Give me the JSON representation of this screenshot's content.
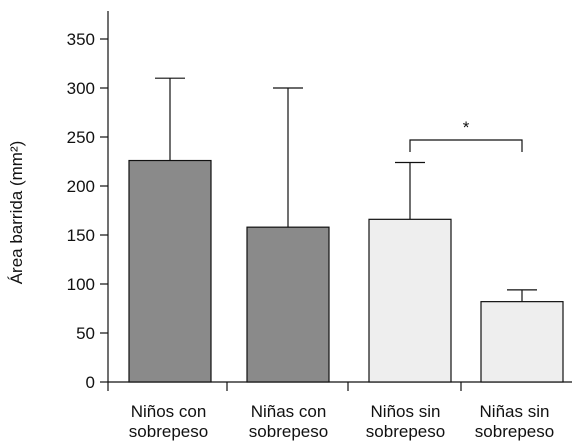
{
  "chart_data": {
    "type": "bar",
    "title": "",
    "xlabel": "",
    "ylabel": "Área barrida (mm²)",
    "ylim": [
      0,
      350
    ],
    "yticks": [
      0,
      50,
      100,
      150,
      200,
      250,
      300,
      350
    ],
    "grid": false,
    "categories": [
      [
        "Niños con",
        "sobrepeso"
      ],
      [
        "Niñas con",
        "sobrepeso"
      ],
      [
        "Niños sin",
        "sobrepeso"
      ],
      [
        "Niñas sin",
        "sobrepeso"
      ]
    ],
    "values": [
      226,
      158,
      166,
      82
    ],
    "error_upper": [
      310,
      300,
      224,
      94
    ],
    "bar_colors": [
      "#8a8a8a",
      "#8a8a8a",
      "#eeeeee",
      "#eeeeee"
    ],
    "significance": {
      "from_index": 2,
      "to_index": 3,
      "label": "*"
    }
  }
}
